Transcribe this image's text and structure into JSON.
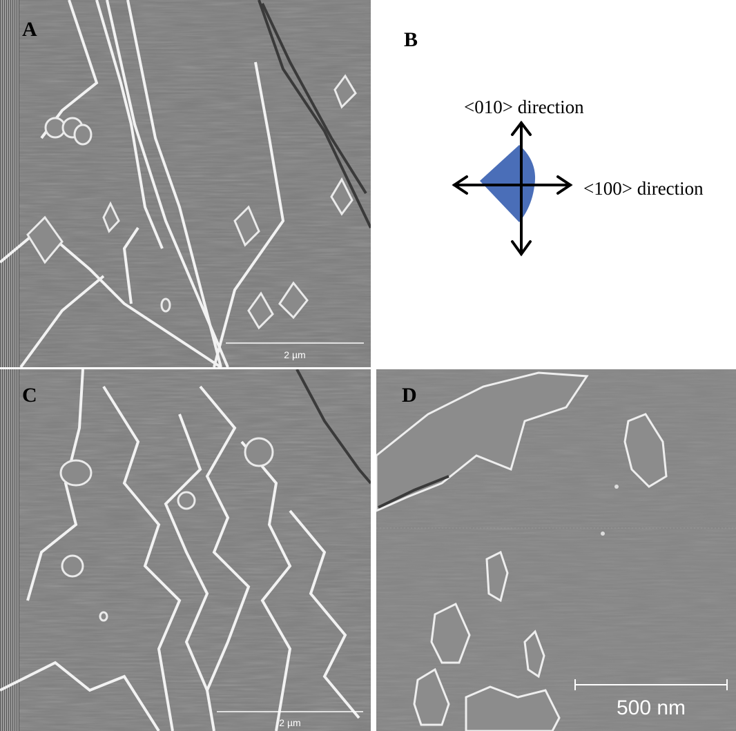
{
  "panel_a": {
    "label": "A",
    "scale_bar": "2 µm"
  },
  "panel_b": {
    "label": "B",
    "vertical_direction": "<010> direction",
    "horizontal_direction": "<100> direction"
  },
  "panel_c": {
    "label": "C",
    "scale_bar": "2 µm"
  },
  "panel_d": {
    "label": "D",
    "scale_bar": "500 nm"
  }
}
